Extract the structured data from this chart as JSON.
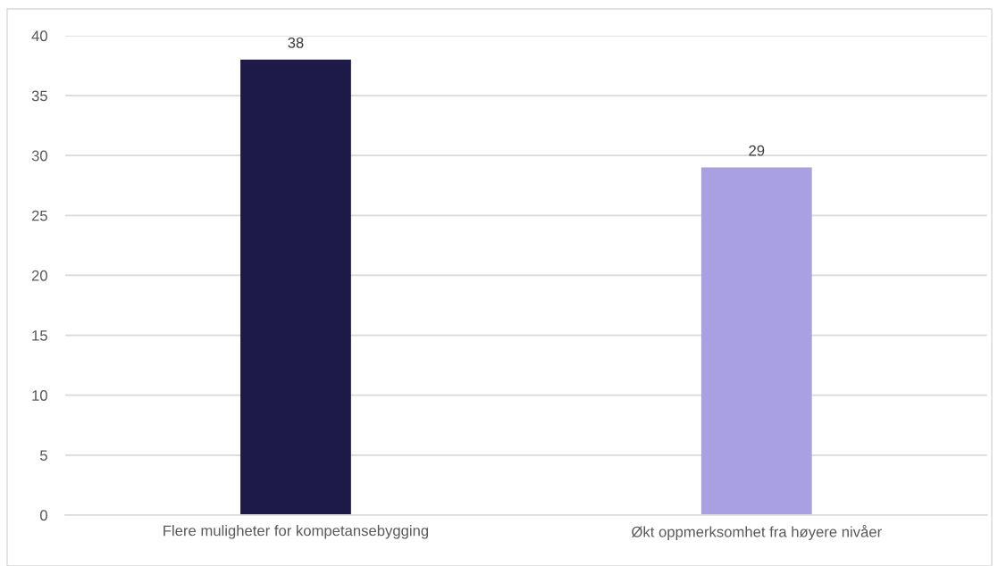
{
  "chart_data": {
    "type": "bar",
    "categories": [
      "Flere muligheter for kompetansebygging",
      "Økt oppmerksomhet fra høyere nivåer"
    ],
    "values": [
      38,
      29
    ],
    "colors": [
      "#1e1a47",
      "#a8a0e0"
    ],
    "ylim": [
      0,
      40
    ],
    "yticks": [
      0,
      5,
      10,
      15,
      20,
      25,
      30,
      35,
      40
    ],
    "grid": "y",
    "data_labels": true,
    "legend": false
  }
}
